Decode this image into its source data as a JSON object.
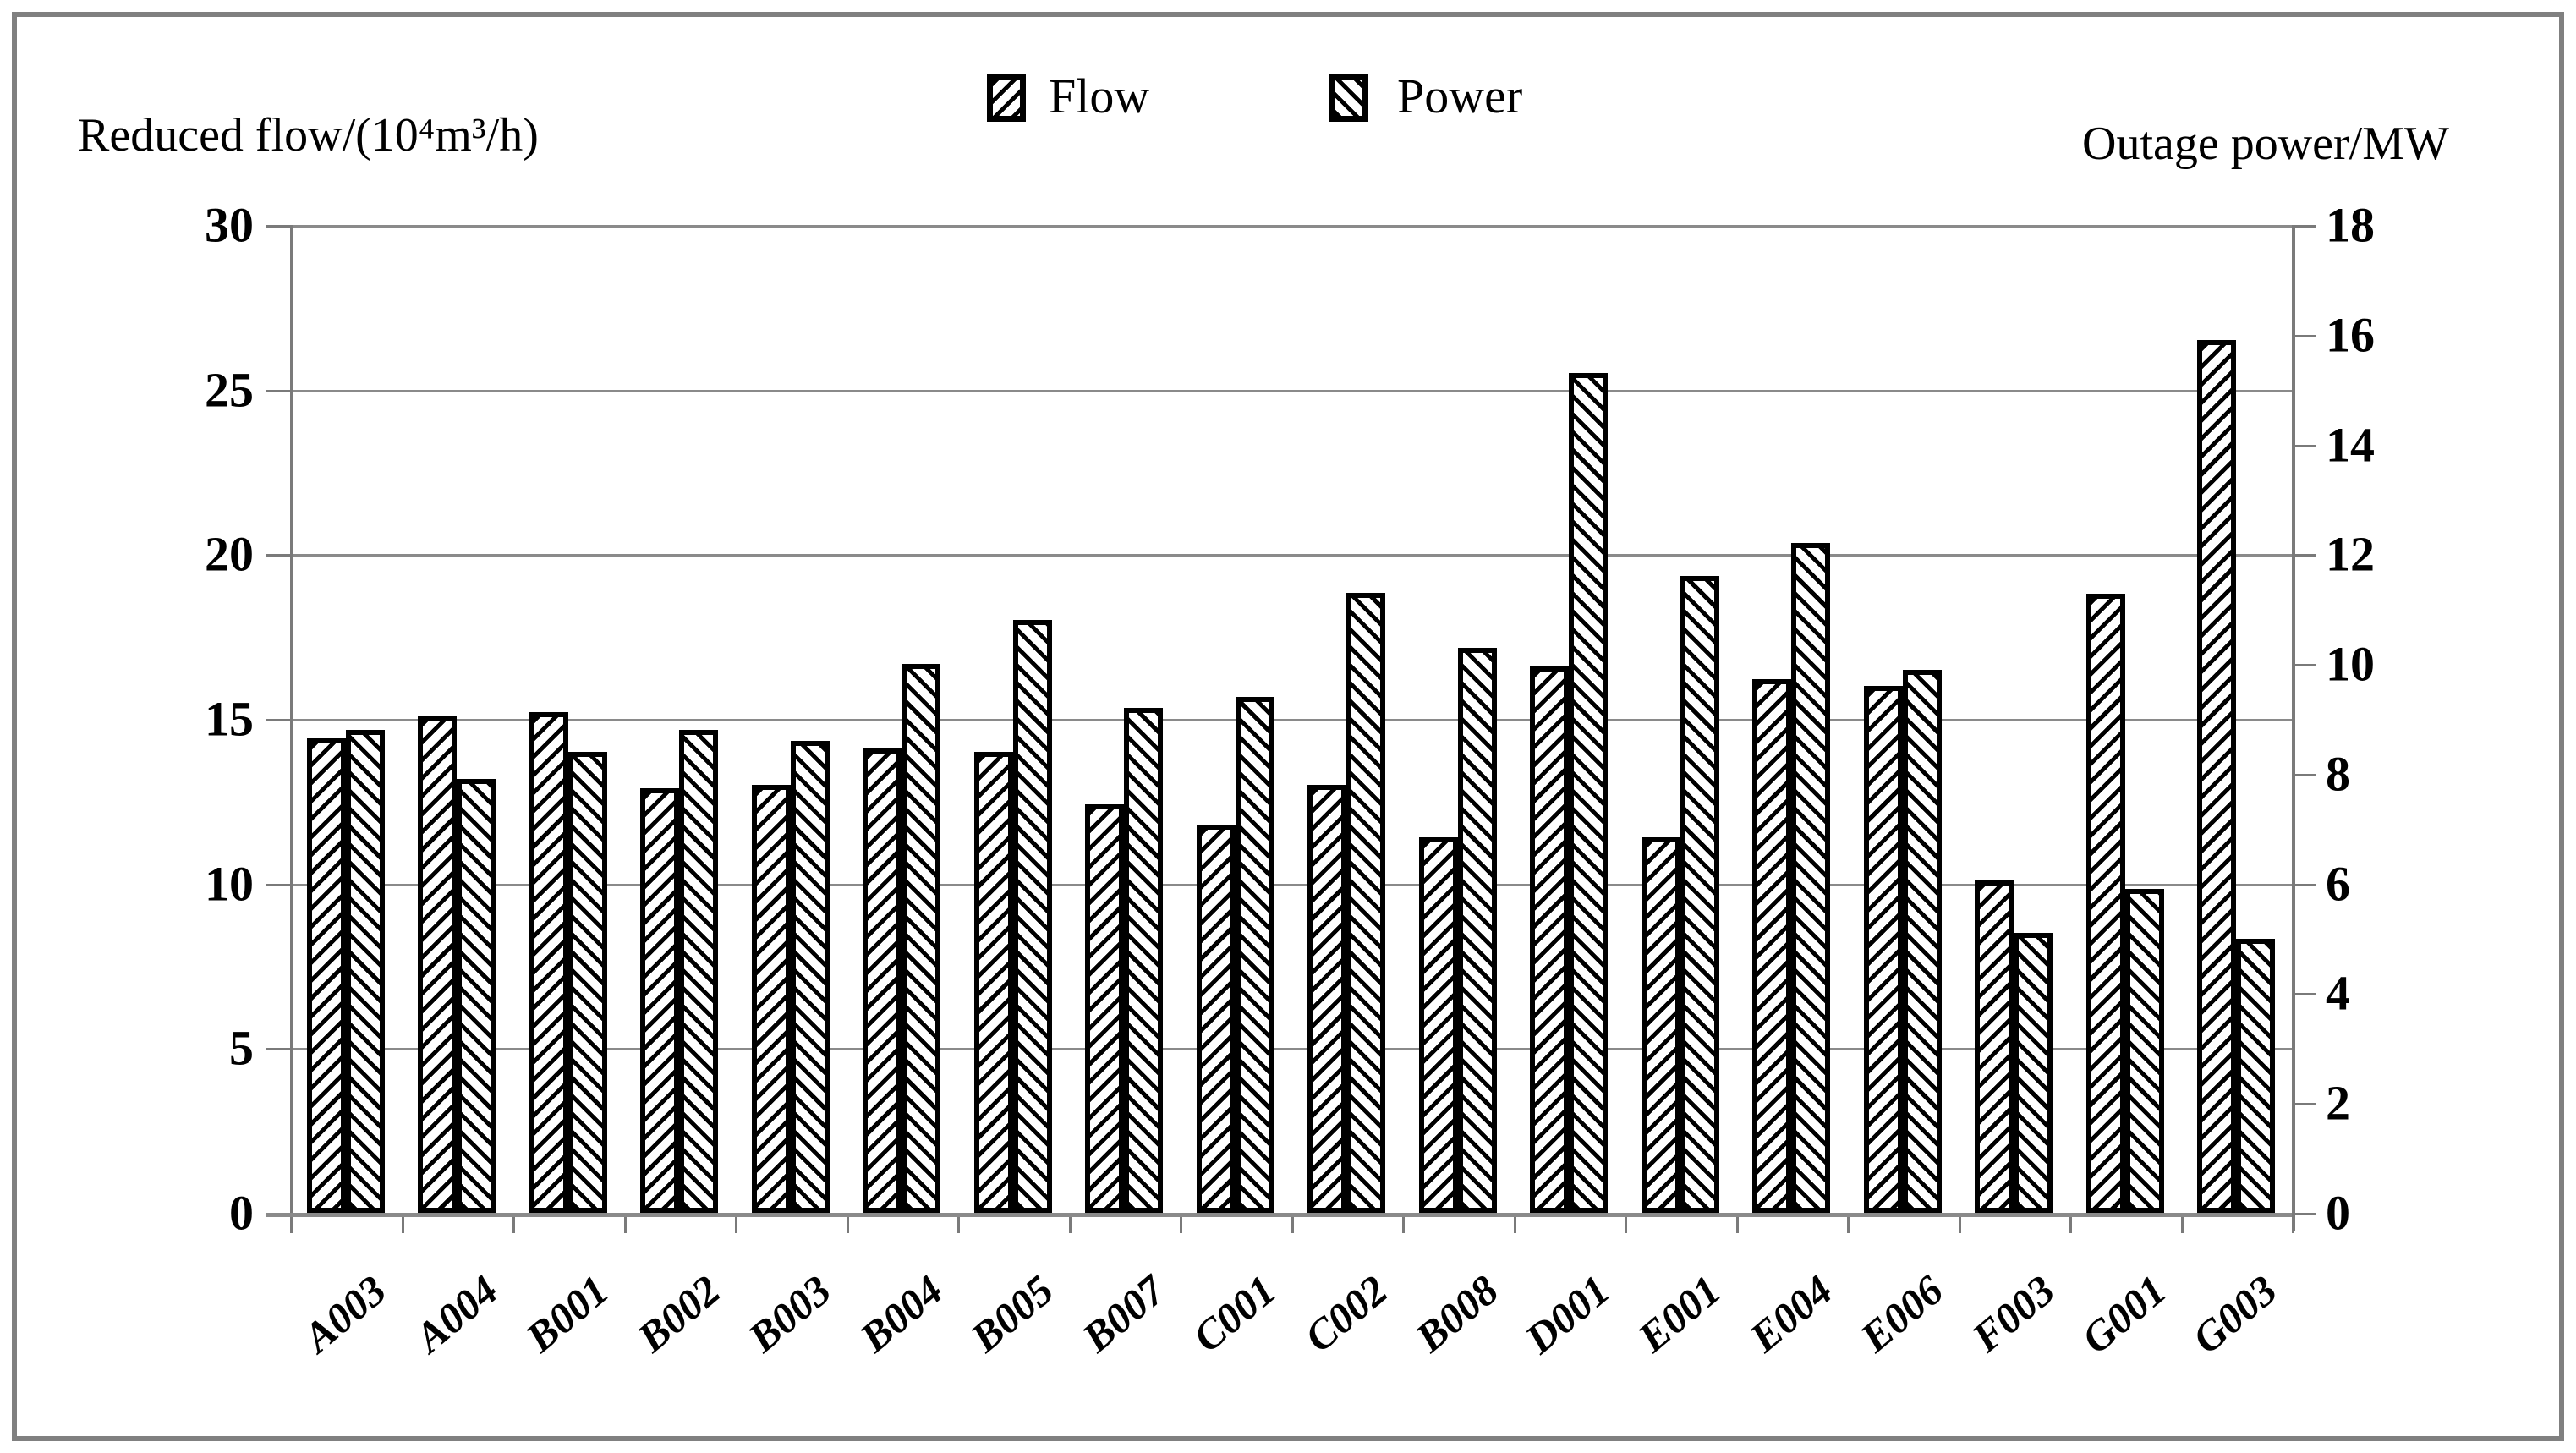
{
  "figure": {
    "left_axis_title": "Reduced flow/(10⁴m³/h)",
    "right_axis_title": "Outage power/MW",
    "legend": [
      {
        "label": "Flow",
        "hatch": "backslash"
      },
      {
        "label": "Power",
        "hatch": "slash"
      }
    ]
  },
  "colors": {
    "bar_fill": "#ffffff",
    "bar_border": "#000000",
    "grid": "#8a8a8a",
    "axis": "#7a7a7a",
    "frame_border": "#808080",
    "text": "#000000"
  },
  "chart_data": {
    "type": "bar",
    "title": "",
    "categories": [
      "A003",
      "A004",
      "B001",
      "B002",
      "B003",
      "B004",
      "B005",
      "B007",
      "C001",
      "C002",
      "B008",
      "D001",
      "E001",
      "E004",
      "E006",
      "F003",
      "G001",
      "G003"
    ],
    "series": [
      {
        "name": "Flow",
        "axis": "left",
        "unit": "10^4 m^3/h",
        "values": [
          14.4,
          15.1,
          15.2,
          12.9,
          13.0,
          14.1,
          14.0,
          12.4,
          11.8,
          13.0,
          11.4,
          16.6,
          11.4,
          16.2,
          16.0,
          10.1,
          18.8,
          26.5
        ]
      },
      {
        "name": "Power",
        "axis": "right",
        "unit": "MW",
        "values": [
          8.8,
          7.9,
          8.4,
          8.8,
          8.6,
          10.0,
          10.8,
          9.2,
          9.4,
          11.3,
          10.3,
          15.3,
          11.6,
          12.2,
          9.9,
          5.1,
          5.9,
          5.0
        ]
      }
    ],
    "left_axis": {
      "label": "Reduced flow/(10⁴m³/h)",
      "min": 0,
      "max": 30,
      "ticks": [
        0,
        5,
        10,
        15,
        20,
        25,
        30
      ]
    },
    "right_axis": {
      "label": "Outage power/MW",
      "min": 0,
      "max": 18,
      "ticks": [
        0,
        2,
        4,
        6,
        8,
        10,
        12,
        14,
        16,
        18
      ]
    },
    "grid": true,
    "legend_position": "top-center",
    "bar_hatch": {
      "Flow": "backslash-diagonal",
      "Power": "slash-diagonal"
    }
  }
}
